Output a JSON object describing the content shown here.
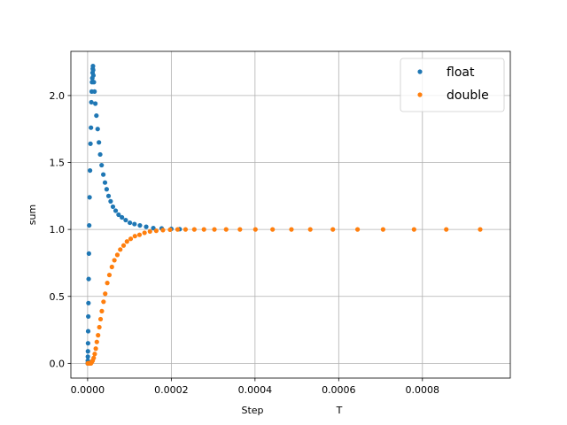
{
  "chart_data": {
    "type": "scatter",
    "title": "",
    "xlabel": "Step",
    "xlabel_suffix": "T",
    "ylabel": "sum",
    "xlim": [
      -4e-05,
      0.00101
    ],
    "ylim": [
      -0.11,
      2.33
    ],
    "x_ticks": [
      0,
      0.0002,
      0.0004,
      0.0006,
      0.0008
    ],
    "x_tick_labels": [
      "0.0000",
      "0.0002",
      "0.0004",
      "0.0006",
      "0.0008"
    ],
    "y_ticks": [
      0,
      0.5,
      1.0,
      1.5,
      2.0
    ],
    "y_tick_labels": [
      "0.0",
      "0.5",
      "1.0",
      "1.5",
      "2.0"
    ],
    "grid": true,
    "legend_position": "top-right",
    "series": [
      {
        "name": "float",
        "color": "#1f77b4",
        "x": [
          2e-07,
          4e-07,
          6e-07,
          8e-07,
          1e-06,
          1.3e-06,
          1.6e-06,
          2e-06,
          2.5e-06,
          3.1e-06,
          3.8e-06,
          4.7e-06,
          5.7e-06,
          6.8e-06,
          8e-06,
          9e-06,
          9.8e-06,
          1.05e-05,
          1.12e-05,
          1.18e-05,
          1.23e-05,
          1.28e-05,
          1.32e-05,
          1.38e-05,
          1.5e-05,
          1.65e-05,
          1.85e-05,
          2.1e-05,
          2.4e-05,
          2.7e-05,
          3e-05,
          3.35e-05,
          3.75e-05,
          4.15e-05,
          4.55e-05,
          5e-05,
          5.5e-05,
          6.05e-05,
          6.7e-05,
          7.4e-05,
          8.2e-05,
          9.1e-05,
          0.000101,
          0.000112,
          0.000125,
          0.00014,
          0.000157,
          0.000177,
          0.0002,
          0.00022
        ],
        "y": [
          0.0,
          0.02,
          0.05,
          0.09,
          0.15,
          0.24,
          0.35,
          0.45,
          0.63,
          0.82,
          1.03,
          1.24,
          1.44,
          1.64,
          1.76,
          1.95,
          2.03,
          2.1,
          2.13,
          2.17,
          2.2,
          2.22,
          2.19,
          2.15,
          2.1,
          2.03,
          1.94,
          1.85,
          1.75,
          1.65,
          1.56,
          1.48,
          1.41,
          1.35,
          1.3,
          1.25,
          1.21,
          1.17,
          1.14,
          1.11,
          1.09,
          1.07,
          1.05,
          1.04,
          1.03,
          1.02,
          1.01,
          1.008,
          1.004,
          1.002
        ]
      },
      {
        "name": "double",
        "color": "#ff7f0e",
        "x": [
          5e-07,
          1e-06,
          2e-06,
          3e-06,
          4.5e-06,
          6e-06,
          8e-06,
          1e-05,
          1.2e-05,
          1.45e-05,
          1.7e-05,
          1.95e-05,
          2.2e-05,
          2.5e-05,
          2.8e-05,
          3.1e-05,
          3.4e-05,
          3.8e-05,
          4.2e-05,
          4.7e-05,
          5.2e-05,
          5.8e-05,
          6.4e-05,
          7.1e-05,
          7.8e-05,
          8.6e-05,
          9.4e-05,
          0.000103,
          0.000113,
          0.000124,
          0.000136,
          0.000149,
          0.000164,
          0.00018,
          0.000197,
          0.000215,
          0.000234,
          0.000255,
          0.000278,
          0.000303,
          0.000331,
          0.000364,
          0.000401,
          0.000442,
          0.000487,
          0.000532,
          0.000586,
          0.000645,
          0.000706,
          0.00078,
          0.000857,
          0.000938
        ],
        "y": [
          0.0,
          0.0,
          0.0,
          0.0,
          0.0,
          0.0,
          0.0,
          0.01,
          0.02,
          0.04,
          0.07,
          0.11,
          0.16,
          0.21,
          0.27,
          0.33,
          0.39,
          0.46,
          0.52,
          0.6,
          0.66,
          0.72,
          0.77,
          0.81,
          0.85,
          0.88,
          0.91,
          0.93,
          0.95,
          0.96,
          0.975,
          0.985,
          0.99,
          0.995,
          0.998,
          1.0,
          1.0,
          1.0,
          1.0,
          1.0,
          1.0,
          1.0,
          1.0,
          1.0,
          1.0,
          1.0,
          1.0,
          1.0,
          1.0,
          1.0,
          1.0,
          1.0
        ]
      }
    ]
  }
}
